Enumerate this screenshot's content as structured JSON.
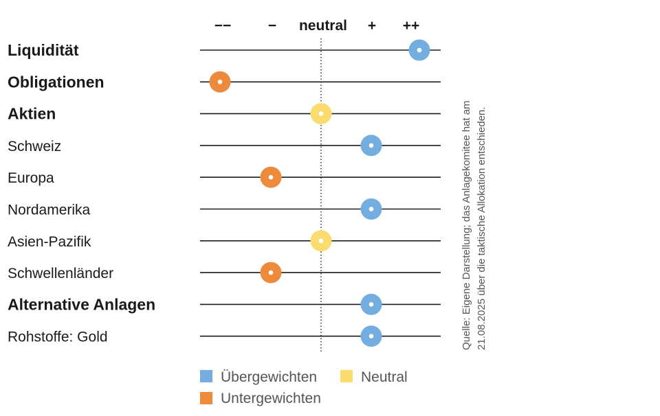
{
  "chart_data": {
    "type": "scatter",
    "scale_labels": [
      "−−",
      "−",
      "neutral",
      "+",
      "++"
    ],
    "categories": [
      {
        "label": "Liquidität",
        "bold": true,
        "value": 2,
        "rating": "Übergewichten"
      },
      {
        "label": "Obligationen",
        "bold": true,
        "value": -2,
        "rating": "Untergewichten"
      },
      {
        "label": "Aktien",
        "bold": true,
        "value": 0,
        "rating": "Neutral"
      },
      {
        "label": "Schweiz",
        "bold": false,
        "value": 1,
        "rating": "Übergewichten"
      },
      {
        "label": "Europa",
        "bold": false,
        "value": -1,
        "rating": "Untergewichten"
      },
      {
        "label": "Nordamerika",
        "bold": false,
        "value": 1,
        "rating": "Übergewichten"
      },
      {
        "label": "Asien-Pazifik",
        "bold": false,
        "value": 0,
        "rating": "Neutral"
      },
      {
        "label": "Schwellenländer",
        "bold": false,
        "value": -1,
        "rating": "Untergewichten"
      },
      {
        "label": "Alternative Anlagen",
        "bold": true,
        "value": 1,
        "rating": "Übergewichten"
      },
      {
        "label": "Rohstoffe: Gold",
        "bold": false,
        "value": 1,
        "rating": "Übergewichten"
      }
    ],
    "xlim": [
      -2,
      2
    ],
    "legend": [
      {
        "label": "Übergewichten",
        "color": "#74aee0"
      },
      {
        "label": "Neutral",
        "color": "#fadd6e"
      },
      {
        "label": "Untergewichten",
        "color": "#ee8a3c"
      }
    ],
    "legend_position": "bottom",
    "source_lines": [
      "Quelle: Eigene Darstellung; das Anlagekomitee hat am",
      "21.08.2025 über die taktische Allokation entschieden."
    ]
  },
  "colors": {
    "Übergewichten": "#74aee0",
    "Neutral": "#fadd6e",
    "Untergewichten": "#ee8a3c",
    "line": "#1a1a1a"
  }
}
